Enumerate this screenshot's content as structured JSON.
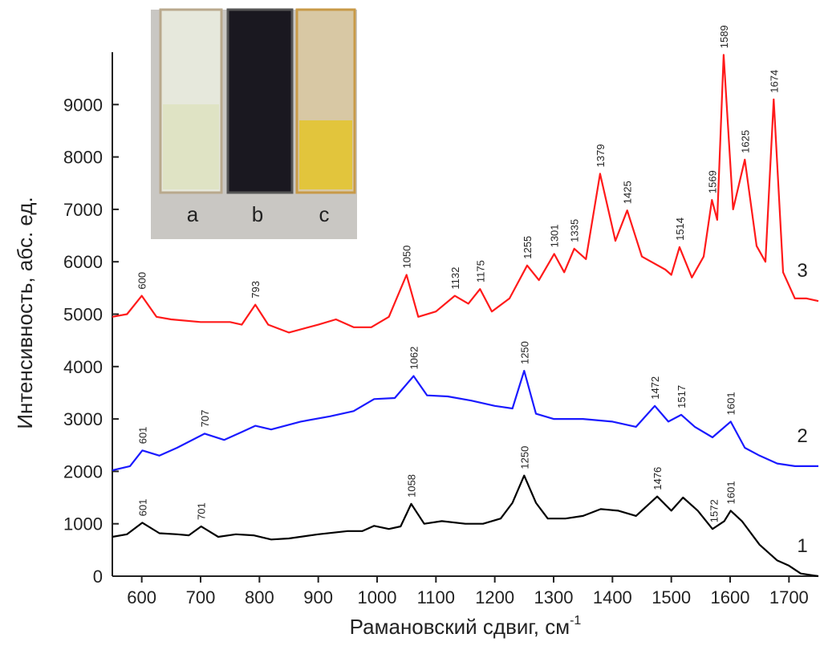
{
  "chart_data": {
    "type": "line",
    "x_label": "Рамановский сдвиг, см",
    "x_label_sup": "-1",
    "y_label": "Интенсивность, абс. ед.",
    "xlim": [
      550,
      1750
    ],
    "ylim": [
      0,
      10000
    ],
    "xticks": [
      600,
      700,
      800,
      900,
      1000,
      1100,
      1200,
      1300,
      1400,
      1500,
      1600,
      1700
    ],
    "yticks": [
      0,
      1000,
      2000,
      3000,
      4000,
      5000,
      6000,
      7000,
      8000,
      9000
    ],
    "inset_labels": [
      "a",
      "b",
      "c"
    ],
    "series": [
      {
        "name": "1",
        "color": "#000000",
        "x": [
          550,
          575,
          601,
          630,
          660,
          680,
          701,
          730,
          760,
          790,
          820,
          850,
          900,
          950,
          975,
          995,
          1020,
          1040,
          1058,
          1080,
          1110,
          1150,
          1180,
          1210,
          1230,
          1250,
          1270,
          1290,
          1320,
          1350,
          1380,
          1410,
          1440,
          1476,
          1500,
          1520,
          1545,
          1570,
          1590,
          1601,
          1620,
          1650,
          1680,
          1700,
          1720,
          1750
        ],
        "values": [
          750,
          800,
          1020,
          820,
          800,
          780,
          950,
          750,
          800,
          780,
          700,
          720,
          800,
          860,
          860,
          960,
          900,
          950,
          1380,
          1000,
          1050,
          1000,
          1000,
          1100,
          1400,
          1920,
          1400,
          1100,
          1100,
          1150,
          1280,
          1250,
          1150,
          1520,
          1250,
          1500,
          1250,
          900,
          1050,
          1250,
          1050,
          600,
          300,
          200,
          50,
          0
        ],
        "peaks": [
          601,
          701,
          1058,
          1250,
          1476,
          1572,
          1601
        ]
      },
      {
        "name": "2",
        "color": "#1a1aff",
        "x": [
          550,
          580,
          601,
          630,
          660,
          707,
          740,
          770,
          793,
          820,
          870,
          920,
          960,
          995,
          1030,
          1062,
          1085,
          1120,
          1160,
          1200,
          1230,
          1250,
          1270,
          1300,
          1350,
          1400,
          1440,
          1472,
          1495,
          1517,
          1540,
          1570,
          1601,
          1625,
          1650,
          1680,
          1710,
          1750
        ],
        "values": [
          2020,
          2100,
          2400,
          2300,
          2450,
          2720,
          2600,
          2750,
          2870,
          2800,
          2950,
          3050,
          3150,
          3380,
          3400,
          3820,
          3450,
          3430,
          3350,
          3250,
          3200,
          3920,
          3100,
          3000,
          3000,
          2950,
          2850,
          3250,
          2950,
          3080,
          2850,
          2650,
          2950,
          2450,
          2300,
          2150,
          2100,
          2100
        ],
        "peaks": [
          601,
          707,
          1062,
          1250,
          1472,
          1517,
          1601
        ]
      },
      {
        "name": "3",
        "color": "#ff1a1a",
        "x": [
          550,
          575,
          600,
          625,
          650,
          700,
          750,
          770,
          793,
          815,
          850,
          900,
          930,
          960,
          990,
          1020,
          1050,
          1070,
          1100,
          1132,
          1155,
          1175,
          1195,
          1225,
          1255,
          1275,
          1301,
          1318,
          1335,
          1355,
          1379,
          1405,
          1425,
          1450,
          1490,
          1500,
          1514,
          1535,
          1555,
          1569,
          1578,
          1589,
          1605,
          1625,
          1645,
          1660,
          1674,
          1690,
          1710,
          1730,
          1750
        ],
        "values": [
          4950,
          5000,
          5350,
          4950,
          4900,
          4850,
          4850,
          4800,
          5180,
          4800,
          4650,
          4800,
          4900,
          4750,
          4750,
          4950,
          5750,
          4950,
          5050,
          5350,
          5200,
          5480,
          5050,
          5300,
          5930,
          5650,
          6150,
          5800,
          6250,
          6050,
          7680,
          6400,
          6980,
          6100,
          5850,
          5750,
          6280,
          5700,
          6100,
          7180,
          6800,
          9950,
          7000,
          7950,
          6300,
          6000,
          9100,
          5800,
          5300,
          5300,
          5250
        ],
        "peaks": [
          600,
          793,
          1050,
          1132,
          1175,
          1255,
          1301,
          1335,
          1379,
          1425,
          1514,
          1569,
          1589,
          1625,
          1674
        ]
      }
    ]
  }
}
